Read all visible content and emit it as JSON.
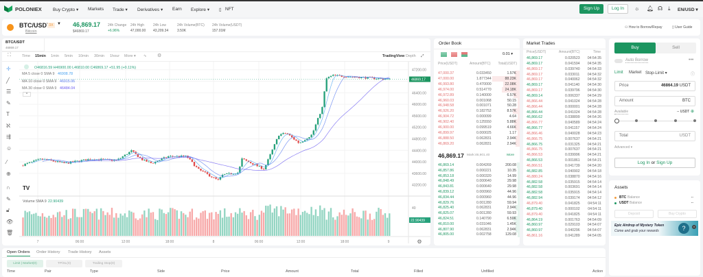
{
  "nav": {
    "brand": "POLONIEX",
    "items": [
      "Buy Crypto ▾",
      "Markets",
      "Trade ▾",
      "Derivatives ▾",
      "Earn",
      "Explore ▾",
      "NFT"
    ],
    "signup": "Sign Up",
    "login": "Log In",
    "locale": "EN/USD ▾"
  },
  "ticker": {
    "pair": "BTC/USDT",
    "leverage": "3X",
    "name": "Bitcoin",
    "price": "46,869.17",
    "price_usd": "$46869.17",
    "stats": [
      {
        "label": "24h Change",
        "value": "+6.96%"
      },
      {
        "label": "24h High",
        "value": "47,000.00"
      },
      {
        "label": "24h Low",
        "value": "43,209.34"
      },
      {
        "label": "24h Volume(BTC)",
        "value": "3.50K"
      },
      {
        "label": "24h Volume(USDT)",
        "value": "157.01M"
      }
    ],
    "borrow": "How to Borrow/Repay",
    "guide": "User Guide"
  },
  "chart": {
    "tab_pair": "BTC/USDT",
    "tab_price": "46869.17",
    "intervals": [
      "Time",
      "15min",
      "1min",
      "5min",
      "10min",
      "30min",
      "1hour",
      "More ▾"
    ],
    "active_interval": "15min",
    "view_trading": "TradingView",
    "view_depth": "Depth",
    "ohlc": "O46816.59 H46900.00 L46810.00 C46869.17 +51.95 (+0.11%)",
    "ma": [
      {
        "label": "MA 5 close 0 SMA 9",
        "value": "46908.78",
        "color": "#4aa3f0"
      },
      {
        "label": "MA 10 close 0 SMA 9",
        "value": "46915.06",
        "color": "#5a7cf0"
      },
      {
        "label": "MA 30 close 0 SMA 9",
        "value": "46484.04",
        "color": "#6b5cf0"
      }
    ],
    "price_ticks": [
      "47200.00",
      "46400.00",
      "46000.00",
      "45600.00",
      "45200.00",
      "44800.00",
      "44400.00",
      "44000.00",
      "43600.00",
      "43200.00"
    ],
    "last_price": "46869.17",
    "volume_label": "Volume SMA 9",
    "volume_value": "22.90439",
    "volume_tick": "40",
    "time_ticks": [
      "7",
      "06:00",
      "12:00",
      "18:00",
      "8",
      "06:00",
      "12:00",
      "18:00",
      "9"
    ],
    "up_color": "#26a17b",
    "down_color": "#e04b4b"
  },
  "orderbook": {
    "title": "Order Book",
    "precision": "0.01 ▾",
    "cols": [
      "Price(USDT)",
      "Amount(BTC)",
      "Total(USDT)"
    ],
    "asks": [
      [
        "47,000.37",
        "0.033450",
        "1.57K"
      ],
      [
        "47,000.00",
        "1.877344",
        "88.23K"
      ],
      [
        "46,993.80",
        "0.470000",
        "22.08K"
      ],
      [
        "46,974.00",
        "0.514770",
        "24.18K"
      ],
      [
        "46,972.89",
        "0.140000",
        "6.57K"
      ],
      [
        "46,960.03",
        "0.001068",
        "50.15"
      ],
      [
        "46,948.58",
        "0.001071",
        "50.28"
      ],
      [
        "46,926.20",
        "0.182752",
        "8.57K"
      ],
      [
        "46,904.72",
        "0.000099",
        "4.64"
      ],
      [
        "46,902.40",
        "0.125550",
        "5.88K"
      ],
      [
        "46,900.00",
        "0.099519",
        "4.66K"
      ],
      [
        "46,899.97",
        "0.000025",
        "1.17"
      ],
      [
        "46,888.50",
        "0.062831",
        "2.94K"
      ],
      [
        "46,869.20",
        "0.062831",
        "2.94K"
      ]
    ],
    "mid": "46,869.17",
    "mark": "Mark:46,901.40",
    "more": "More",
    "bids": [
      [
        "46,869.14",
        "0.004269",
        "200.08"
      ],
      [
        "46,857.86",
        "0.000221",
        "10.35"
      ],
      [
        "46,853.18",
        "0.000320",
        "14.99"
      ],
      [
        "46,848.49",
        "0.000640",
        "29.98"
      ],
      [
        "46,843.81",
        "0.000640",
        "29.98"
      ],
      [
        "46,839.12",
        "0.000960",
        "44.96"
      ],
      [
        "46,834.44",
        "0.000960",
        "44.96"
      ],
      [
        "46,829.76",
        "0.001280",
        "59.94"
      ],
      [
        "46,825.40",
        "0.062831",
        "2.94K"
      ],
      [
        "46,825.07",
        "0.001280",
        "59.93"
      ],
      [
        "46,824.51",
        "0.140790",
        "6.59K"
      ],
      [
        "46,810.00",
        "0.031046",
        "1.45K"
      ],
      [
        "46,807.90",
        "0.062831",
        "2.94K"
      ],
      [
        "46,805.00",
        "0.002758",
        "129.08"
      ]
    ]
  },
  "trades": {
    "title": "Market Trades",
    "cols": [
      "Price(USDT)",
      "Amount(BTC)",
      "Time"
    ],
    "rows": [
      [
        "46,869.17",
        "0.020523",
        "04:54:35",
        "buy"
      ],
      [
        "46,869.17",
        "0.041594",
        "04:54:35",
        "buy"
      ],
      [
        "46,869.17",
        "0.039740",
        "04:54:33",
        "sell"
      ],
      [
        "46,869.17",
        "0.033011",
        "04:54:32",
        "sell"
      ],
      [
        "46,869.17",
        "0.040062",
        "04:54:32",
        "sell"
      ],
      [
        "46,869.17",
        "0.041140",
        "04:54:30",
        "buy"
      ],
      [
        "46,869.17",
        "0.039796",
        "04:54:30",
        "sell"
      ],
      [
        "46,869.14",
        "0.006337",
        "04:54:29",
        "buy"
      ],
      [
        "46,866.44",
        "0.041024",
        "04:54:28",
        "sell"
      ],
      [
        "46,866.44",
        "0.000001",
        "04:54:28",
        "sell"
      ],
      [
        "46,866.44",
        "0.041024",
        "04:54:28",
        "buy"
      ],
      [
        "46,866.62",
        "0.038899",
        "04:54:26",
        "buy"
      ],
      [
        "46,866.77",
        "0.040589",
        "04:54:24",
        "sell"
      ],
      [
        "46,866.77",
        "0.041157",
        "04:54:24",
        "buy"
      ],
      [
        "46,866.46",
        "0.040028",
        "04:54:23",
        "sell"
      ],
      [
        "46,866.75",
        "0.007637",
        "04:54:21",
        "sell"
      ],
      [
        "46,866.75",
        "0.031325",
        "04:54:21",
        "buy"
      ],
      [
        "46,866.75",
        "0.007637",
        "04:54:21",
        "sell"
      ],
      [
        "46,866.53",
        "0.039996",
        "04:54:21",
        "sell"
      ],
      [
        "46,866.53",
        "0.001861",
        "04:54:21",
        "buy"
      ],
      [
        "46,866.51",
        "0.041739",
        "04:54:20",
        "sell"
      ],
      [
        "46,882.85",
        "0.040902",
        "04:54:18",
        "buy"
      ],
      [
        "46,880.24",
        "0.038870",
        "04:54:16",
        "sell"
      ],
      [
        "46,882.58",
        "0.035915",
        "04:54:14",
        "buy"
      ],
      [
        "46,882.58",
        "0.003691",
        "04:54:14",
        "buy"
      ],
      [
        "46,882.58",
        "0.035915",
        "04:54:14",
        "buy"
      ],
      [
        "46,882.94",
        "0.039174",
        "04:54:12",
        "buy"
      ],
      [
        "46,879.40",
        "0.041825",
        "04:54:11",
        "sell"
      ],
      [
        "46,879.40",
        "0.000102",
        "04:54:11",
        "buy"
      ],
      [
        "46,879.40",
        "0.041825",
        "04:54:11",
        "sell"
      ],
      [
        "46,864.19",
        "0.001763",
        "04:54:09",
        "buy"
      ],
      [
        "46,860.97",
        "0.029103",
        "04:54:07",
        "buy"
      ],
      [
        "46,860.97",
        "0.040296",
        "04:54:07",
        "buy"
      ],
      [
        "46,861.16",
        "0.041289",
        "04:54:05",
        "sell"
      ]
    ]
  },
  "trade_panel": {
    "buy": "Buy",
    "sell": "Sell",
    "auto_borrow": "Auto Borrow",
    "types": [
      "Limit",
      "Market",
      "Stop-Limit ▾"
    ],
    "price_label": "Price",
    "price_value": "46864.19",
    "price_unit": "USDT",
    "amount_label": "Amount",
    "amount_unit": "BTC",
    "available": "Available",
    "available_value": "-- USDT",
    "total_label": "Total",
    "total_unit": "USDT",
    "advanced": "Advanced ▾",
    "login": "Log In",
    "or": "or",
    "signup": "Sign Up"
  },
  "assets": {
    "title": "Assets",
    "items": [
      {
        "coin": "BTC",
        "label": "Balance",
        "value": "--",
        "color": "#f39c3d"
      },
      {
        "coin": "USDT",
        "label": "Balance",
        "value": "--",
        "color": "#1c9560"
      }
    ],
    "deposit": "Deposit",
    "buy_crypto": "Buy Crypto",
    "banner_title": "Epic Airdrop of Mystery Token",
    "banner_sub": "Come and grab your rewards"
  },
  "orders": {
    "tabs": [
      "Open Orders",
      "Order History",
      "Trade History",
      "Assets"
    ],
    "filters": [
      "Limit | Market(0)",
      "TP/SL(0)",
      "Trailing Stop(0)"
    ],
    "cols": [
      "Time",
      "Pair",
      "Type",
      "Side",
      "Price",
      "Amount",
      "Total",
      "Filled",
      "Unfilled",
      "Action"
    ]
  }
}
